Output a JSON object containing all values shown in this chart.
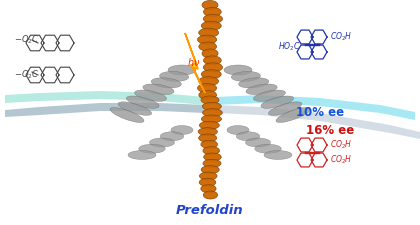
{
  "bg_color": "#ffffff",
  "prefoldin_label": "Prefoldin",
  "prefoldin_color": "#2244cc",
  "hv_color": "#ee3300",
  "lightning_fill": "#ffdd00",
  "lightning_edge": "#ff9900",
  "teal_ribbon_color": "#88ddcc",
  "cyan_ribbon_color": "#77ddee",
  "gray_ribbon_color": "#7799aa",
  "silver_ribbon_color": "#aabbcc",
  "ee1_text": "10% ee",
  "ee1_color": "#1155dd",
  "ee2_text": "16% ee",
  "ee2_color": "#cc1111",
  "product1_color": "#2233aa",
  "product2_color": "#cc2222",
  "reactant_color": "#444444",
  "orange_helix": "#cc6600",
  "orange_edge": "#884400",
  "gray_helix": "#999999",
  "gray_edge": "#666666",
  "fig_width": 4.2,
  "fig_height": 2.25,
  "dpi": 100
}
